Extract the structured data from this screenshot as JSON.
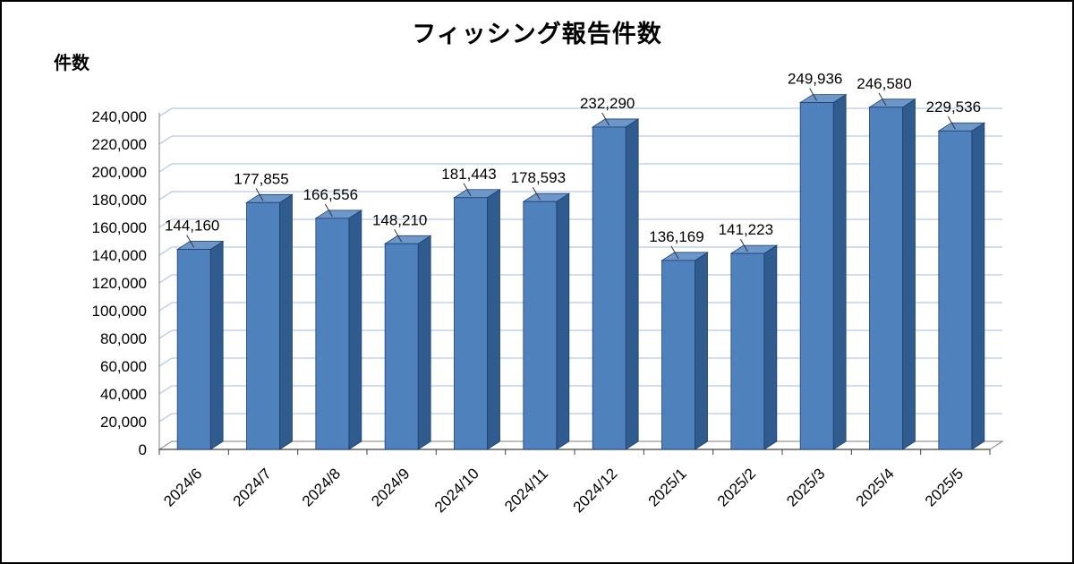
{
  "chart_data": {
    "type": "bar",
    "title": "フィッシング報告件数",
    "ylabel": "件数",
    "xlabel": "",
    "categories": [
      "2024/6",
      "2024/7",
      "2024/8",
      "2024/9",
      "2024/10",
      "2024/11",
      "2024/12",
      "2025/1",
      "2025/2",
      "2025/3",
      "2025/4",
      "2025/5"
    ],
    "values": [
      144160,
      177855,
      166556,
      148210,
      181443,
      178593,
      232290,
      136169,
      141223,
      249936,
      246580,
      229536
    ],
    "value_labels": [
      "144,160",
      "177,855",
      "166,556",
      "148,210",
      "181,443",
      "178,593",
      "232,290",
      "136,169",
      "141,223",
      "249,936",
      "246,580",
      "229,536"
    ],
    "y_ticks": [
      0,
      20000,
      40000,
      60000,
      80000,
      100000,
      120000,
      140000,
      160000,
      180000,
      200000,
      220000,
      240000
    ],
    "y_tick_labels": [
      "0",
      "20,000",
      "40,000",
      "60,000",
      "80,000",
      "100,000",
      "120,000",
      "140,000",
      "160,000",
      "180,000",
      "200,000",
      "220,000",
      "240,000"
    ],
    "ylim": [
      0,
      260000
    ],
    "grid": true,
    "legend": "none",
    "style": "3d-column",
    "colors": {
      "bar_front": "#4f81bd",
      "bar_top": "#6d97c9",
      "bar_side": "#2f5b8f",
      "bar_outline": "#1c3f6e",
      "gridline": "#b3c9e6",
      "axis": "#808080",
      "axis_front": "#404040",
      "leader_line": "#333333",
      "text": "#000000",
      "background": "#ffffff",
      "border": "#000000"
    }
  }
}
